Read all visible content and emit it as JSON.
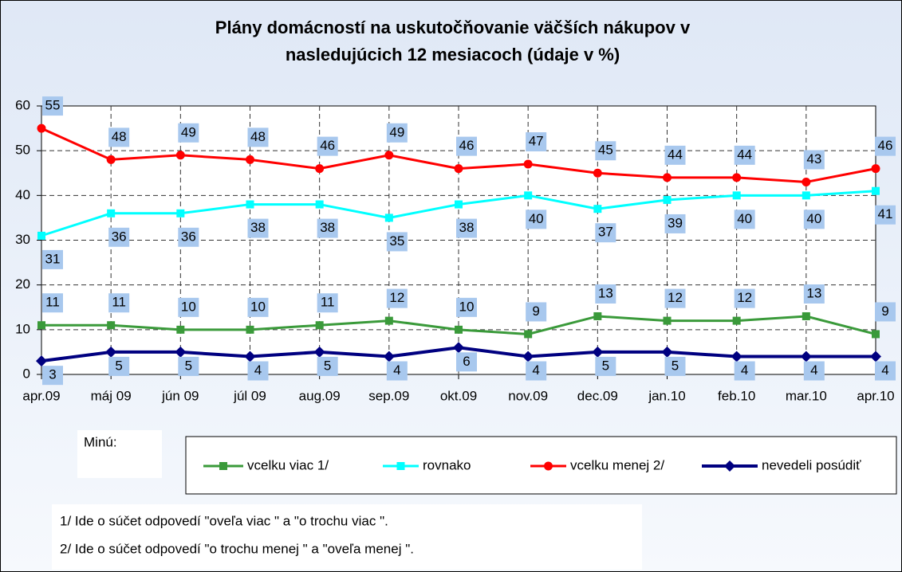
{
  "chart_data": {
    "type": "line",
    "title": "Plány domácností na uskutočňovanie väčších nákupov v nasledujúcich 12 mesiacoch (údaje v %)",
    "categories": [
      "apr.09",
      "máj 09",
      "jún 09",
      "júl 09",
      "aug.09",
      "sep.09",
      "okt.09",
      "nov.09",
      "dec.09",
      "jan.10",
      "feb.10",
      "mar.10",
      "apr.10"
    ],
    "series": [
      {
        "name": "vcelku viac  1/",
        "color": "#3a9a3a",
        "marker": "square",
        "values": [
          11,
          11,
          10,
          10,
          11,
          12,
          10,
          9,
          13,
          12,
          12,
          13,
          9
        ]
      },
      {
        "name": "rovnako",
        "color": "#00ffff",
        "marker": "square",
        "values": [
          31,
          36,
          36,
          38,
          38,
          35,
          38,
          40,
          37,
          39,
          40,
          40,
          41
        ]
      },
      {
        "name": "vcelku menej  2/",
        "color": "#ff0000",
        "marker": "circle",
        "values": [
          55,
          48,
          49,
          48,
          46,
          49,
          46,
          47,
          45,
          44,
          44,
          43,
          46
        ]
      },
      {
        "name": "nevedeli posúdiť",
        "color": "#000080",
        "marker": "diamond",
        "values": [
          3,
          5,
          5,
          4,
          5,
          4,
          6,
          4,
          5,
          5,
          4,
          4,
          4
        ]
      }
    ],
    "ylim": [
      0,
      60
    ],
    "yticks": [
      0,
      10,
      20,
      30,
      40,
      50,
      60
    ],
    "grid": true,
    "legend_note": "Minú:",
    "footnotes": [
      "1/ Ide o súčet odpovedí \"oveľa viac \" a \"o trochu viac \".",
      "2/ Ide o súčet odpovedí \"o trochu menej \" a \"oveľa menej \"."
    ]
  }
}
